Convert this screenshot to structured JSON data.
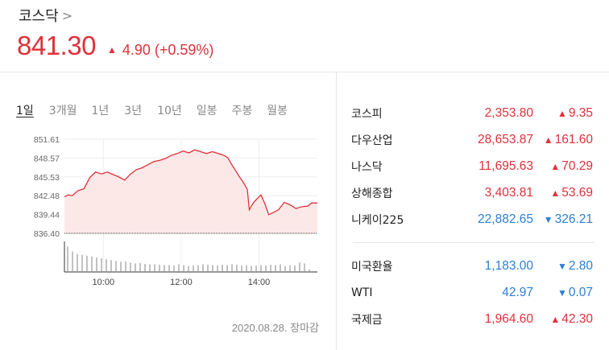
{
  "header": {
    "index_name": "코스닥",
    "chevron": ">",
    "price": "841.30",
    "change_arrow": "▲",
    "change_text": "4.90 (+0.59%)"
  },
  "tabs": [
    {
      "label": "1일",
      "active": true
    },
    {
      "label": "3개월",
      "active": false
    },
    {
      "label": "1년",
      "active": false
    },
    {
      "label": "3년",
      "active": false
    },
    {
      "label": "10년",
      "active": false
    },
    {
      "label": "일봉",
      "active": false
    },
    {
      "label": "주봉",
      "active": false
    },
    {
      "label": "월봉",
      "active": false
    }
  ],
  "chart_data": {
    "type": "area",
    "y_ticks": [
      "851.61",
      "848.57",
      "845.53",
      "842.48",
      "839.44",
      "836.40"
    ],
    "ylim": [
      836.4,
      851.61
    ],
    "x_ticks": [
      "10:00",
      "12:00",
      "14:00"
    ],
    "xlim": [
      "09:00",
      "15:30"
    ],
    "series": [
      {
        "values": [
          [
            9.0,
            842.3
          ],
          [
            9.1,
            842.6
          ],
          [
            9.2,
            842.5
          ],
          [
            9.35,
            843.3
          ],
          [
            9.5,
            843.6
          ],
          [
            9.65,
            845.4
          ],
          [
            9.8,
            846.3
          ],
          [
            9.95,
            846.0
          ],
          [
            10.1,
            846.3
          ],
          [
            10.25,
            845.9
          ],
          [
            10.4,
            845.5
          ],
          [
            10.55,
            845.0
          ],
          [
            10.7,
            846.0
          ],
          [
            10.85,
            846.7
          ],
          [
            11.0,
            847.0
          ],
          [
            11.15,
            847.5
          ],
          [
            11.3,
            848.0
          ],
          [
            11.45,
            848.2
          ],
          [
            11.6,
            848.5
          ],
          [
            11.75,
            849.0
          ],
          [
            11.9,
            849.3
          ],
          [
            12.05,
            849.7
          ],
          [
            12.2,
            849.4
          ],
          [
            12.35,
            849.9
          ],
          [
            12.5,
            849.6
          ],
          [
            12.65,
            849.3
          ],
          [
            12.8,
            849.6
          ],
          [
            12.95,
            849.3
          ],
          [
            13.1,
            849.0
          ],
          [
            13.2,
            848.6
          ],
          [
            13.3,
            847.5
          ],
          [
            13.4,
            846.5
          ],
          [
            13.5,
            845.5
          ],
          [
            13.6,
            844.6
          ],
          [
            13.7,
            843.5
          ],
          [
            13.75,
            840.2
          ],
          [
            13.85,
            841.3
          ],
          [
            13.95,
            842.0
          ],
          [
            14.05,
            842.6
          ],
          [
            14.15,
            841.2
          ],
          [
            14.25,
            839.4
          ],
          [
            14.35,
            839.7
          ],
          [
            14.5,
            840.2
          ],
          [
            14.65,
            841.4
          ],
          [
            14.8,
            841.0
          ],
          [
            14.95,
            840.4
          ],
          [
            15.1,
            840.7
          ],
          [
            15.25,
            840.8
          ],
          [
            15.35,
            841.3
          ],
          [
            15.5,
            841.3
          ]
        ]
      }
    ],
    "volume": [
      3.0,
      2.4,
      2.1,
      2.0,
      1.9,
      1.8,
      1.7,
      1.6,
      1.5,
      1.4,
      1.3,
      1.2,
      1.25,
      1.1,
      1.0,
      1.05,
      0.95,
      0.9,
      0.9,
      0.85,
      0.8,
      0.8,
      0.75,
      0.9,
      0.8,
      0.7,
      0.75,
      0.8,
      0.9,
      0.85,
      0.8,
      0.75,
      0.85,
      0.8,
      0.9,
      0.85,
      0.75,
      0.8,
      0.7,
      0.75,
      0.8,
      0.75,
      0.85,
      0.8,
      0.9,
      0.7,
      0.8,
      0.75,
      1.1,
      1.0,
      0.3
    ],
    "baseline": 836.4,
    "colors": {
      "line": "#e0303a",
      "fill": "#fde8e8",
      "volume": "#999999"
    }
  },
  "date_note": "2020.08.28. 장마감",
  "markets": [
    {
      "name": "코스피",
      "value": "2,353.80",
      "arrow": "▲",
      "change": "9.35",
      "dir": "up"
    },
    {
      "name": "다우산업",
      "value": "28,653.87",
      "arrow": "▲",
      "change": "161.60",
      "dir": "up"
    },
    {
      "name": "나스닥",
      "value": "11,695.63",
      "arrow": "▲",
      "change": "70.29",
      "dir": "up"
    },
    {
      "name": "상해종합",
      "value": "3,403.81",
      "arrow": "▲",
      "change": "53.69",
      "dir": "up"
    },
    {
      "name": "니케이225",
      "value": "22,882.65",
      "arrow": "▼",
      "change": "326.21",
      "dir": "down"
    }
  ],
  "markets2": [
    {
      "name": "미국환율",
      "value": "1,183.00",
      "arrow": "▼",
      "change": "2.80",
      "dir": "down"
    },
    {
      "name": "WTI",
      "value": "42.97",
      "arrow": "▼",
      "change": "0.07",
      "dir": "down"
    },
    {
      "name": "국제금",
      "value": "1,964.60",
      "arrow": "▲",
      "change": "42.30",
      "dir": "up"
    }
  ],
  "colors": {
    "up": "#e0303a",
    "down": "#2b7fd6"
  }
}
